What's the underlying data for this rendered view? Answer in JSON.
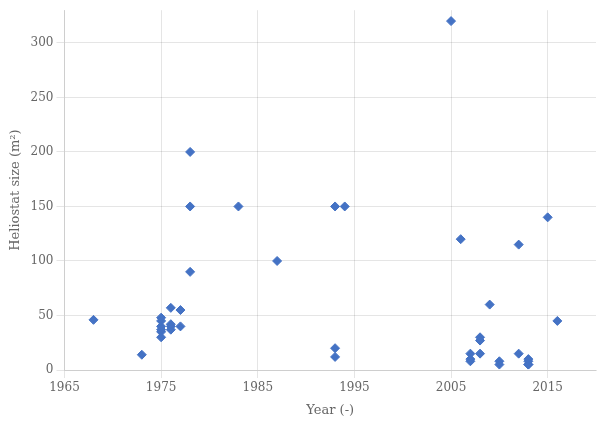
{
  "chart_data": {
    "type": "scatter",
    "x": [
      1968,
      1973,
      1975,
      1975,
      1975,
      1975,
      1975,
      1975,
      1976,
      1976,
      1976,
      1976,
      1977,
      1977,
      1978,
      1978,
      1978,
      1983,
      1987,
      1993,
      1994,
      1993,
      1993,
      2005,
      2006,
      2007,
      2007,
      2007,
      2008,
      2008,
      2008,
      2009,
      2010,
      2010,
      2012,
      2012,
      2013,
      2013,
      2013,
      2013,
      2015,
      2016
    ],
    "values": [
      46,
      14,
      35,
      37,
      40,
      45,
      48,
      30,
      37,
      40,
      42,
      57,
      40,
      55,
      90,
      150,
      200,
      150,
      100,
      150,
      150,
      12,
      20,
      320,
      120,
      15,
      10,
      8,
      30,
      27,
      15,
      60,
      8,
      5,
      115,
      15,
      5,
      8,
      5,
      10,
      140,
      45
    ],
    "color": "#4472C4",
    "marker": "diamond",
    "xlabel": "Year (-)",
    "ylabel": "Heliostat size (m²)",
    "xlim": [
      1965,
      2020
    ],
    "ylim": [
      0,
      330
    ],
    "xticks": [
      1965,
      1975,
      1985,
      1995,
      2005,
      2015
    ],
    "yticks": [
      0,
      50,
      100,
      150,
      200,
      250,
      300
    ],
    "grid": true
  }
}
